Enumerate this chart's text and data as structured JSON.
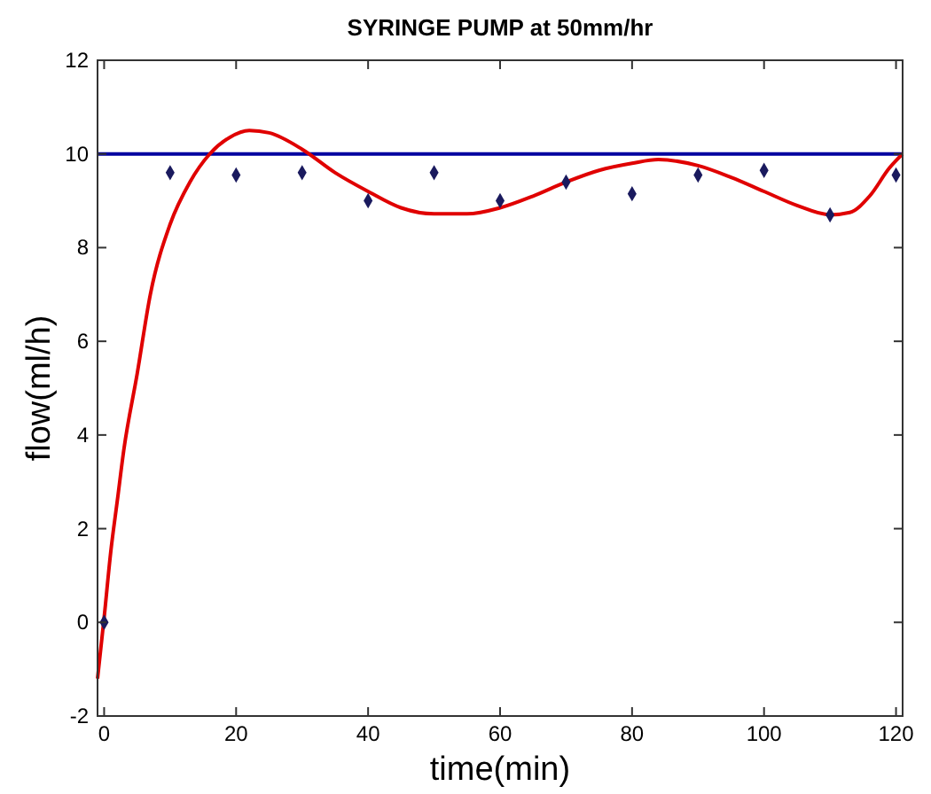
{
  "chart_data": {
    "type": "line",
    "title": "SYRINGE PUMP at 50mm/hr",
    "xlabel": "time(min)",
    "ylabel": "flow(ml/h)",
    "xlim": [
      -1,
      121
    ],
    "ylim": [
      -2,
      12
    ],
    "xticks": [
      0,
      20,
      40,
      60,
      80,
      100,
      120
    ],
    "yticks": [
      -2,
      0,
      2,
      4,
      6,
      8,
      10,
      12
    ],
    "grid": false,
    "series": [
      {
        "type": "scatter",
        "color": "#1a1a5e",
        "marker": "diamond",
        "x": [
          0,
          10,
          20,
          30,
          40,
          50,
          60,
          70,
          80,
          90,
          100,
          110,
          120
        ],
        "values": [
          0,
          9.6,
          9.55,
          9.6,
          9.0,
          9.6,
          9.0,
          9.4,
          9.15,
          9.55,
          9.65,
          8.7,
          9.55
        ]
      },
      {
        "color": "#e00000",
        "x": [
          -1,
          0,
          1,
          2,
          3,
          5,
          7,
          10,
          13,
          16,
          19,
          22,
          25,
          30,
          35,
          40,
          45,
          50,
          55,
          60,
          65,
          70,
          75,
          80,
          84,
          90,
          95,
          100,
          105,
          110,
          113,
          116,
          119,
          121
        ],
        "values": [
          -1.2,
          0.1,
          1.5,
          2.6,
          3.7,
          5.3,
          7.0,
          8.5,
          9.4,
          10.0,
          10.35,
          10.5,
          10.45,
          10.1,
          9.6,
          9.2,
          8.85,
          8.72,
          8.72,
          8.85,
          9.1,
          9.4,
          9.65,
          9.8,
          9.88,
          9.75,
          9.5,
          9.2,
          8.9,
          8.7,
          8.75,
          9.1,
          9.7,
          10.0
        ]
      }
    ],
    "ref_lines": [
      {
        "axis": "y",
        "value": 10,
        "color": "#0000a0"
      }
    ]
  }
}
